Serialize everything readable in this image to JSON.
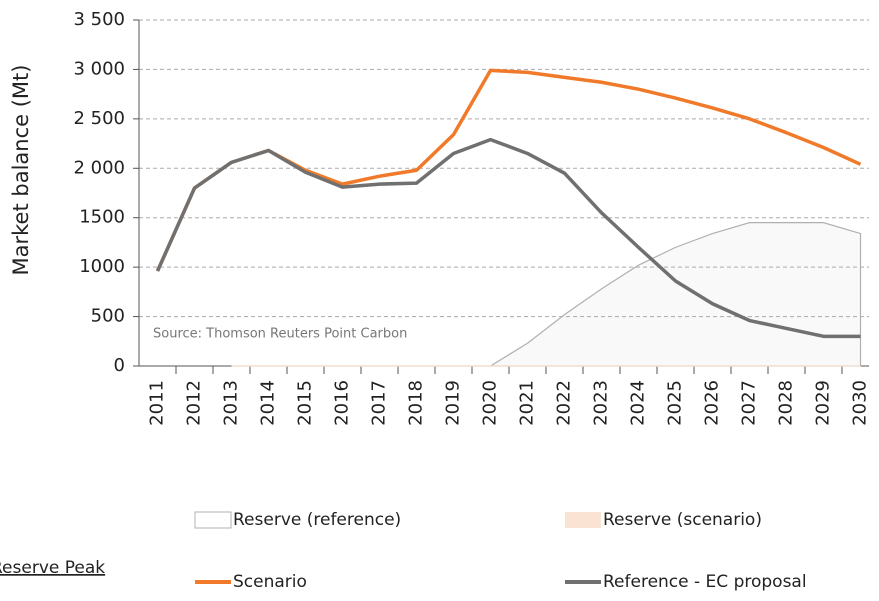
{
  "chart_data": {
    "type": "line",
    "y_label": "Market balance (Mt)",
    "source": "Source: Thomson Reuters Point Carbon",
    "annotation": "Reserve Peak",
    "categories": [
      "2011",
      "2012",
      "2013",
      "2014",
      "2015",
      "2016",
      "2017",
      "2018",
      "2019",
      "2020",
      "2021",
      "2022",
      "2023",
      "2024",
      "2025",
      "2026",
      "2027",
      "2028",
      "2029",
      "2030"
    ],
    "ylim": [
      0,
      3500
    ],
    "yticks": [
      0,
      500,
      1000,
      1500,
      {
        "value": 2000,
        "label": "2 000"
      },
      {
        "value": 2500,
        "label": "2 500"
      },
      {
        "value": 3000,
        "label": "3 000"
      },
      {
        "value": 3500,
        "label": "3 500"
      }
    ],
    "grid": true,
    "series": [
      {
        "name": "Reserve (reference)",
        "kind": "area",
        "color": "#b0b0b0",
        "values": [
          null,
          null,
          0,
          0,
          0,
          0,
          0,
          0,
          0,
          0,
          230,
          520,
          780,
          1020,
          1200,
          1340,
          1450,
          1450,
          1450,
          1340
        ]
      },
      {
        "name": "Reserve (scenario)",
        "kind": "area",
        "color": "#fbe3d3",
        "values": [
          null,
          null,
          0,
          0,
          0,
          0,
          0,
          0,
          0,
          0,
          0,
          0,
          0,
          0,
          0,
          0,
          0,
          0,
          0,
          0
        ]
      },
      {
        "name": "Scenario",
        "kind": "line",
        "color": "#f07a2a",
        "values": [
          960,
          1800,
          2060,
          2180,
          1980,
          1840,
          1920,
          1980,
          2340,
          2990,
          2970,
          2920,
          2870,
          2800,
          2710,
          2610,
          2500,
          2360,
          2210,
          2040
        ]
      },
      {
        "name": "Reference - EC proposal",
        "kind": "line",
        "color": "#707070",
        "values": [
          960,
          1800,
          2060,
          2180,
          1960,
          1810,
          1840,
          1850,
          2150,
          2290,
          2150,
          1950,
          1550,
          1200,
          860,
          630,
          460,
          380,
          300,
          300
        ]
      }
    ]
  }
}
